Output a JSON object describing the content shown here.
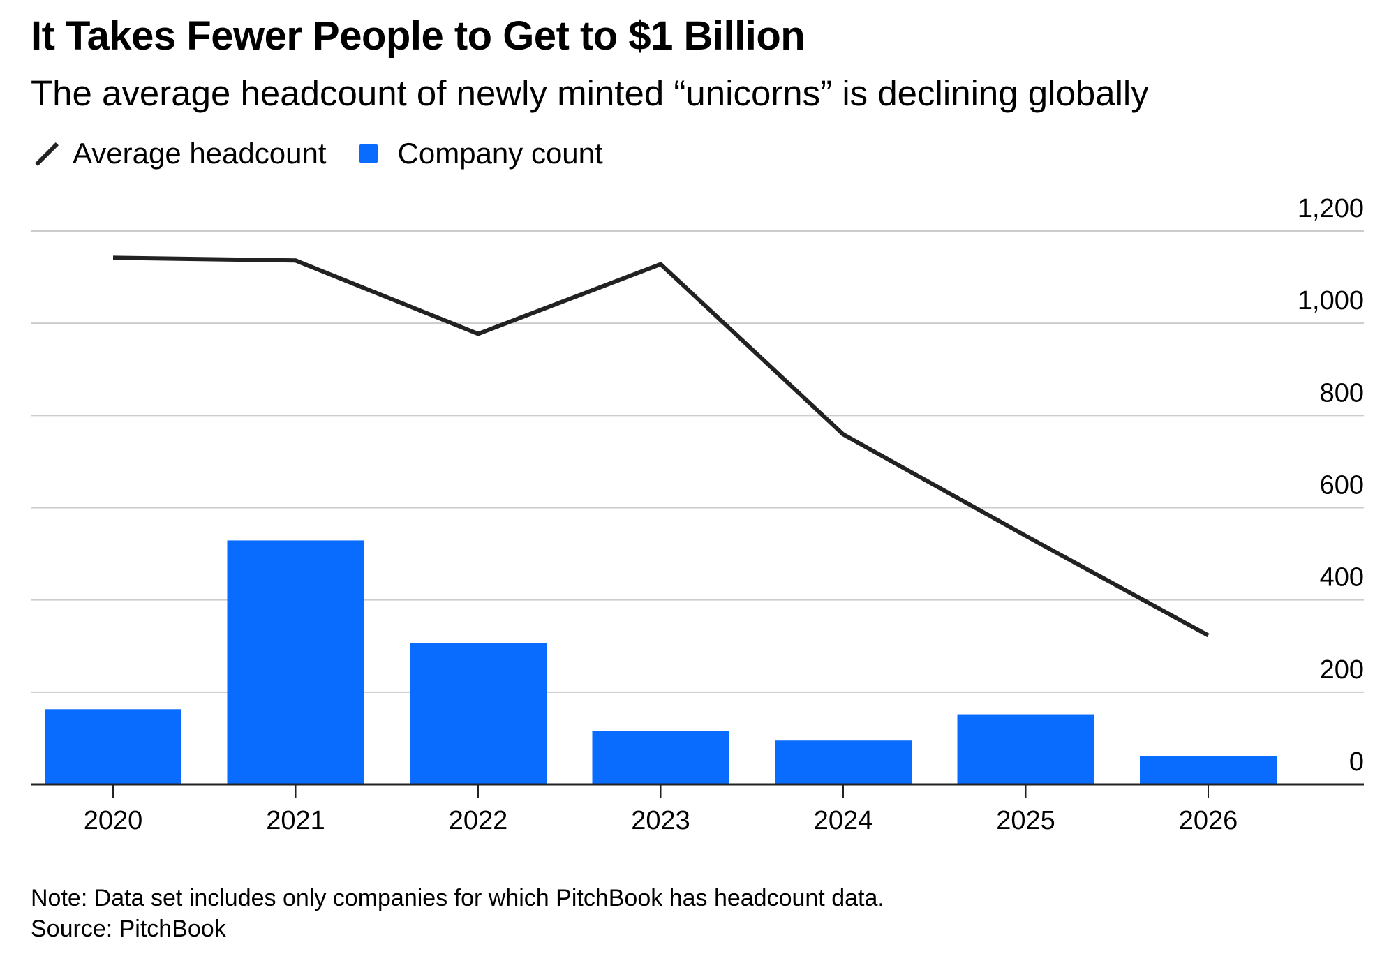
{
  "title": "It Takes Fewer People to Get to $1 Billion",
  "subtitle": "The average headcount of newly minted “unicorns” is declining globally",
  "legend": {
    "line": "Average headcount",
    "bar": "Company count"
  },
  "note": "Note: Data set includes only companies for which PitchBook has headcount data.",
  "source": "Source: PitchBook",
  "colors": {
    "bar": "#0a6cff",
    "line": "#222222",
    "grid": "#cccccc"
  },
  "chart_data": {
    "type": "bar+line",
    "categories": [
      "2020",
      "2021",
      "2022",
      "2023",
      "2024",
      "2025",
      "2026"
    ],
    "series": [
      {
        "name": "Company count",
        "type": "bar",
        "values": [
          163,
          529,
          307,
          115,
          95,
          152,
          62
        ]
      },
      {
        "name": "Average headcount",
        "type": "line",
        "values": [
          1142,
          1136,
          977,
          1128,
          759,
          539,
          323
        ]
      }
    ],
    "yticks": [
      "0",
      "200",
      "400",
      "600",
      "800",
      "1,000",
      "1,200"
    ],
    "ytick_values": [
      0,
      200,
      400,
      600,
      800,
      1000,
      1200
    ],
    "ylim": [
      0,
      1200
    ],
    "grid": true,
    "y_axis_position": "right",
    "legend_position": "top-left"
  }
}
